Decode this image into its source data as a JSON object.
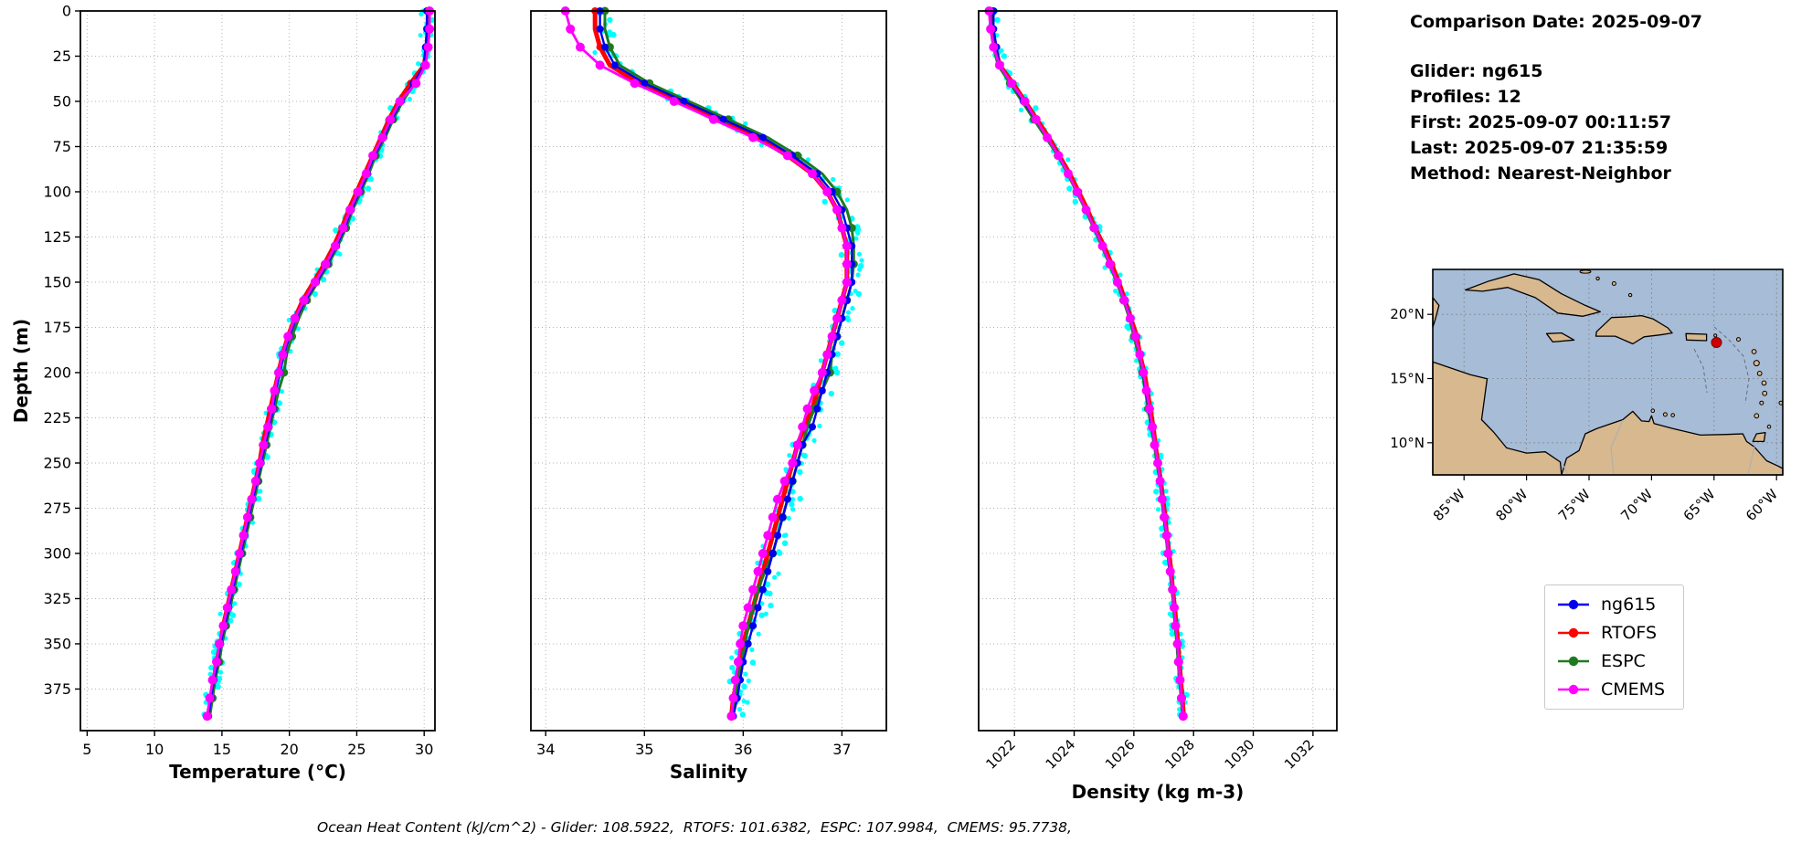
{
  "info_panel": {
    "comparison_date": "Comparison Date: 2025-09-07",
    "glider": "Glider: ng615",
    "profiles": "Profiles: 12",
    "first": "First: 2025-09-07 00:11:57",
    "last": "Last: 2025-09-07 21:35:59",
    "method": "Method: Nearest-Neighbor"
  },
  "footer": "Ocean Heat Content (kJ/cm^2) - Glider: 108.5922,  RTOFS: 101.6382,  ESPC: 107.9984,  CMEMS: 95.7738,",
  "legend": {
    "entries": [
      {
        "label": "ng615",
        "color": "#0000ee"
      },
      {
        "label": "RTOFS",
        "color": "#ff0000"
      },
      {
        "label": "ESPC",
        "color": "#1f7a1f"
      },
      {
        "label": "CMEMS",
        "color": "#ff00ff"
      }
    ]
  },
  "map": {
    "lon_ticks": [
      "85°W",
      "80°W",
      "75°W",
      "70°W",
      "65°W",
      "60°W"
    ],
    "lat_ticks": [
      "20°N",
      "15°N",
      "10°N"
    ],
    "colors": {
      "ocean": "#a6bcd7",
      "land": "#d8b88e",
      "marker": "#cc0000"
    }
  },
  "chart_data": [
    {
      "type": "line",
      "title": "",
      "xlabel": "Temperature (°C)",
      "ylabel": "Depth (m)",
      "xlim": [
        4.5,
        30.8
      ],
      "ylim": [
        0,
        398
      ],
      "xticks": [
        5,
        10,
        15,
        20,
        25,
        30
      ],
      "yticks": [
        0,
        25,
        50,
        75,
        100,
        125,
        150,
        175,
        200,
        225,
        250,
        275,
        300,
        325,
        350,
        375
      ],
      "grid": true,
      "depths": [
        0,
        10,
        20,
        30,
        40,
        50,
        60,
        70,
        80,
        90,
        100,
        110,
        120,
        130,
        140,
        150,
        160,
        170,
        180,
        190,
        200,
        210,
        220,
        230,
        240,
        250,
        260,
        270,
        280,
        290,
        300,
        310,
        320,
        330,
        340,
        350,
        360,
        370,
        380,
        390
      ],
      "scatter": {
        "name": "glider-raw-profiles",
        "color": "#00ffff",
        "jitter": 0.45
      },
      "series": [
        {
          "name": "ng615",
          "color": "#0000ee",
          "lw": 2.4,
          "marker_size": 4,
          "mark_every": 1,
          "values": [
            30.2,
            30.2,
            30.1,
            30.0,
            29.2,
            28.3,
            27.6,
            27.0,
            26.3,
            25.8,
            25.2,
            24.6,
            24.1,
            23.5,
            22.8,
            22.0,
            21.2,
            20.5,
            20.0,
            19.6,
            19.3,
            19.0,
            18.8,
            18.5,
            18.2,
            17.9,
            17.6,
            17.3,
            17.0,
            16.7,
            16.4,
            16.1,
            15.8,
            15.5,
            15.2,
            14.9,
            14.7,
            14.4,
            14.2,
            14.0
          ]
        },
        {
          "name": "RTOFS",
          "color": "#ff0000",
          "lw": 5,
          "marker_size": 4,
          "mark_every": 2,
          "values": [
            30.3,
            30.3,
            30.2,
            30.0,
            29.0,
            28.1,
            27.4,
            26.8,
            26.2,
            25.6,
            25.0,
            24.4,
            23.9,
            23.3,
            22.6,
            21.8,
            21.0,
            20.4,
            19.9,
            19.5,
            19.2,
            18.9,
            18.6,
            18.3,
            18.0,
            17.8,
            17.5,
            17.2,
            16.9,
            16.6,
            16.3,
            16.0,
            15.7,
            15.4,
            15.1,
            14.9,
            14.6,
            14.4,
            14.2,
            14.0
          ]
        },
        {
          "name": "ESPC",
          "color": "#1f7a1f",
          "lw": 3,
          "marker_size": 4.5,
          "mark_every": 2,
          "values": [
            30.3,
            30.3,
            30.2,
            30.1,
            29.3,
            28.4,
            27.7,
            27.1,
            26.4,
            25.9,
            25.3,
            24.7,
            24.2,
            23.6,
            22.9,
            22.1,
            21.3,
            20.7,
            20.2,
            19.8,
            19.6,
            19.2,
            18.9,
            18.6,
            18.3,
            18.0,
            17.7,
            17.4,
            17.1,
            16.8,
            16.5,
            16.2,
            15.9,
            15.6,
            15.3,
            15.0,
            14.8,
            14.5,
            14.3,
            14.1
          ]
        },
        {
          "name": "CMEMS",
          "color": "#ff00ff",
          "lw": 2.8,
          "marker_size": 5,
          "mark_every": 1,
          "values": [
            30.4,
            30.4,
            30.3,
            30.1,
            29.4,
            28.2,
            27.5,
            26.9,
            26.2,
            25.7,
            25.1,
            24.5,
            24.0,
            23.4,
            22.7,
            21.9,
            21.1,
            20.4,
            19.9,
            19.5,
            19.2,
            18.9,
            18.7,
            18.4,
            18.1,
            17.8,
            17.5,
            17.2,
            16.9,
            16.6,
            16.3,
            16.0,
            15.7,
            15.4,
            15.1,
            14.8,
            14.6,
            14.3,
            14.1,
            13.9
          ]
        }
      ]
    },
    {
      "type": "line",
      "title": "",
      "xlabel": "Salinity",
      "ylabel": "",
      "xlim": [
        33.85,
        37.45
      ],
      "ylim": [
        0,
        398
      ],
      "xticks": [
        34,
        35,
        36,
        37
      ],
      "yticks": [
        0,
        25,
        50,
        75,
        100,
        125,
        150,
        175,
        200,
        225,
        250,
        275,
        300,
        325,
        350,
        375
      ],
      "grid": true,
      "depths": [
        0,
        10,
        20,
        30,
        40,
        50,
        60,
        70,
        80,
        90,
        100,
        110,
        120,
        130,
        140,
        150,
        160,
        170,
        180,
        190,
        200,
        210,
        220,
        230,
        240,
        250,
        260,
        270,
        280,
        290,
        300,
        310,
        320,
        330,
        340,
        350,
        360,
        370,
        380,
        390
      ],
      "scatter": {
        "name": "glider-raw-profiles",
        "color": "#00ffff",
        "jitter": 0.12
      },
      "series": [
        {
          "name": "ng615",
          "color": "#0000ee",
          "lw": 2.4,
          "marker_size": 4,
          "mark_every": 1,
          "values": [
            34.55,
            34.55,
            34.6,
            34.7,
            35.0,
            35.4,
            35.8,
            36.2,
            36.5,
            36.75,
            36.9,
            37.0,
            37.05,
            37.1,
            37.1,
            37.1,
            37.05,
            37.0,
            36.95,
            36.9,
            36.85,
            36.8,
            36.75,
            36.7,
            36.6,
            36.55,
            36.5,
            36.45,
            36.4,
            36.35,
            36.3,
            36.25,
            36.2,
            36.15,
            36.1,
            36.05,
            36.0,
            35.97,
            35.94,
            35.9
          ]
        },
        {
          "name": "RTOFS",
          "color": "#ff0000",
          "lw": 5,
          "marker_size": 4,
          "mark_every": 2,
          "values": [
            34.5,
            34.5,
            34.55,
            34.65,
            34.95,
            35.35,
            35.75,
            36.15,
            36.45,
            36.7,
            36.85,
            36.95,
            37.0,
            37.05,
            37.05,
            37.05,
            37.0,
            36.95,
            36.9,
            36.85,
            36.8,
            36.75,
            36.7,
            36.62,
            36.55,
            36.5,
            36.45,
            36.4,
            36.35,
            36.3,
            36.25,
            36.2,
            36.15,
            36.1,
            36.05,
            36.0,
            35.97,
            35.94,
            35.9,
            35.88
          ]
        },
        {
          "name": "ESPC",
          "color": "#1f7a1f",
          "lw": 3,
          "marker_size": 4.5,
          "mark_every": 2,
          "values": [
            34.6,
            34.6,
            34.65,
            34.75,
            35.05,
            35.45,
            35.85,
            36.25,
            36.55,
            36.8,
            36.95,
            37.05,
            37.1,
            37.12,
            37.12,
            37.1,
            37.05,
            37.0,
            36.95,
            36.9,
            36.88,
            36.8,
            36.72,
            36.65,
            36.6,
            36.55,
            36.5,
            36.45,
            36.4,
            36.35,
            36.3,
            36.22,
            36.15,
            36.1,
            36.05,
            36.02,
            35.98,
            35.95,
            35.92,
            35.9
          ]
        },
        {
          "name": "CMEMS",
          "color": "#ff00ff",
          "lw": 2.8,
          "marker_size": 5,
          "mark_every": 1,
          "values": [
            34.2,
            34.25,
            34.35,
            34.55,
            34.9,
            35.3,
            35.7,
            36.1,
            36.45,
            36.7,
            36.85,
            36.95,
            37.0,
            37.05,
            37.05,
            37.05,
            37.0,
            36.95,
            36.9,
            36.85,
            36.8,
            36.72,
            36.65,
            36.6,
            36.55,
            36.5,
            36.42,
            36.35,
            36.3,
            36.25,
            36.2,
            36.15,
            36.1,
            36.05,
            36.0,
            35.97,
            35.95,
            35.92,
            35.9,
            35.88
          ]
        }
      ]
    },
    {
      "type": "line",
      "title": "",
      "xlabel": "Density (kg m-3)",
      "ylabel": "",
      "xlim": [
        1020.8,
        1032.8
      ],
      "ylim": [
        0,
        398
      ],
      "xticks": [
        1022,
        1024,
        1026,
        1028,
        1030,
        1032
      ],
      "yticks": [
        0,
        25,
        50,
        75,
        100,
        125,
        150,
        175,
        200,
        225,
        250,
        275,
        300,
        325,
        350,
        375
      ],
      "grid": true,
      "depths": [
        0,
        10,
        20,
        30,
        40,
        50,
        60,
        70,
        80,
        90,
        100,
        110,
        120,
        130,
        140,
        150,
        160,
        170,
        180,
        190,
        200,
        210,
        220,
        230,
        240,
        250,
        260,
        270,
        280,
        290,
        300,
        310,
        320,
        330,
        340,
        350,
        360,
        370,
        380,
        390
      ],
      "scatter": {
        "name": "glider-raw-profiles",
        "color": "#00ffff",
        "jitter": 0.18
      },
      "series": [
        {
          "name": "ng615",
          "color": "#0000ee",
          "lw": 2.4,
          "marker_size": 4,
          "mark_every": 1,
          "values": [
            1021.3,
            1021.3,
            1021.4,
            1021.5,
            1021.9,
            1022.3,
            1022.7,
            1023.1,
            1023.5,
            1023.8,
            1024.1,
            1024.4,
            1024.7,
            1024.95,
            1025.2,
            1025.45,
            1025.7,
            1025.9,
            1026.05,
            1026.2,
            1026.3,
            1026.4,
            1026.5,
            1026.6,
            1026.7,
            1026.8,
            1026.9,
            1026.95,
            1027.0,
            1027.1,
            1027.15,
            1027.2,
            1027.3,
            1027.35,
            1027.4,
            1027.45,
            1027.5,
            1027.55,
            1027.6,
            1027.65
          ]
        },
        {
          "name": "RTOFS",
          "color": "#ff0000",
          "lw": 5,
          "marker_size": 4,
          "mark_every": 2,
          "values": [
            1021.25,
            1021.25,
            1021.35,
            1021.5,
            1021.95,
            1022.35,
            1022.75,
            1023.15,
            1023.5,
            1023.85,
            1024.15,
            1024.45,
            1024.7,
            1025.0,
            1025.25,
            1025.5,
            1025.7,
            1025.9,
            1026.1,
            1026.2,
            1026.35,
            1026.45,
            1026.55,
            1026.65,
            1026.72,
            1026.8,
            1026.9,
            1026.97,
            1027.05,
            1027.1,
            1027.18,
            1027.25,
            1027.3,
            1027.37,
            1027.42,
            1027.48,
            1027.52,
            1027.57,
            1027.62,
            1027.67
          ]
        },
        {
          "name": "ESPC",
          "color": "#1f7a1f",
          "lw": 3,
          "marker_size": 4.5,
          "mark_every": 2,
          "values": [
            1021.2,
            1021.2,
            1021.3,
            1021.45,
            1021.85,
            1022.25,
            1022.65,
            1023.05,
            1023.45,
            1023.78,
            1024.08,
            1024.38,
            1024.65,
            1024.92,
            1025.18,
            1025.42,
            1025.65,
            1025.85,
            1026.0,
            1026.15,
            1026.28,
            1026.38,
            1026.48,
            1026.58,
            1026.68,
            1026.78,
            1026.87,
            1026.93,
            1027.0,
            1027.08,
            1027.13,
            1027.2,
            1027.28,
            1027.33,
            1027.38,
            1027.44,
            1027.48,
            1027.53,
            1027.58,
            1027.63
          ]
        },
        {
          "name": "CMEMS",
          "color": "#ff00ff",
          "lw": 2.8,
          "marker_size": 5,
          "mark_every": 1,
          "values": [
            1021.15,
            1021.2,
            1021.3,
            1021.5,
            1021.9,
            1022.35,
            1022.72,
            1023.1,
            1023.48,
            1023.8,
            1024.1,
            1024.4,
            1024.68,
            1024.95,
            1025.2,
            1025.45,
            1025.68,
            1025.88,
            1026.05,
            1026.2,
            1026.32,
            1026.42,
            1026.52,
            1026.62,
            1026.7,
            1026.8,
            1026.88,
            1026.95,
            1027.02,
            1027.1,
            1027.15,
            1027.22,
            1027.3,
            1027.35,
            1027.4,
            1027.46,
            1027.5,
            1027.55,
            1027.6,
            1027.65
          ]
        }
      ]
    }
  ]
}
